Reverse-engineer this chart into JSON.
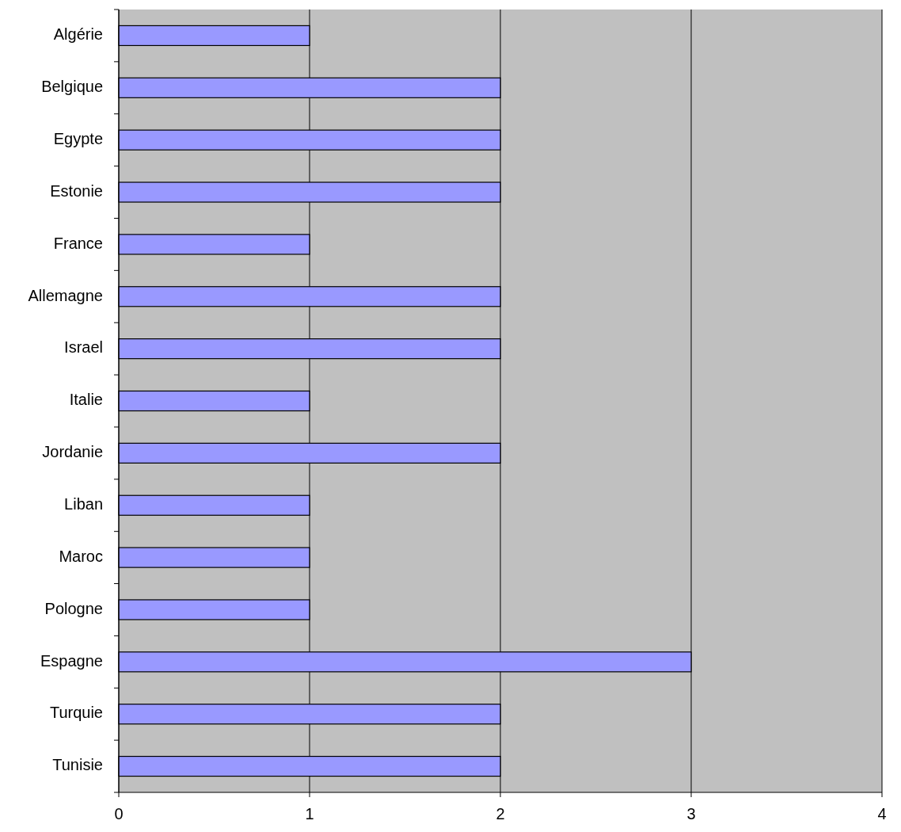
{
  "chart_data": {
    "type": "bar",
    "orientation": "horizontal",
    "categories": [
      "Algérie",
      "Belgique",
      "Egypte",
      "Estonie",
      "France",
      "Allemagne",
      "Israel",
      "Italie",
      "Jordanie",
      "Liban",
      "Maroc",
      "Pologne",
      "Espagne",
      "Turquie",
      "Tunisie"
    ],
    "values": [
      1,
      2,
      2,
      2,
      1,
      2,
      2,
      1,
      2,
      1,
      1,
      1,
      3,
      2,
      2
    ],
    "color": "#9999ff",
    "xlim": [
      0,
      4
    ],
    "xticks": [
      0,
      1,
      2,
      3,
      4
    ],
    "grid": "x"
  }
}
